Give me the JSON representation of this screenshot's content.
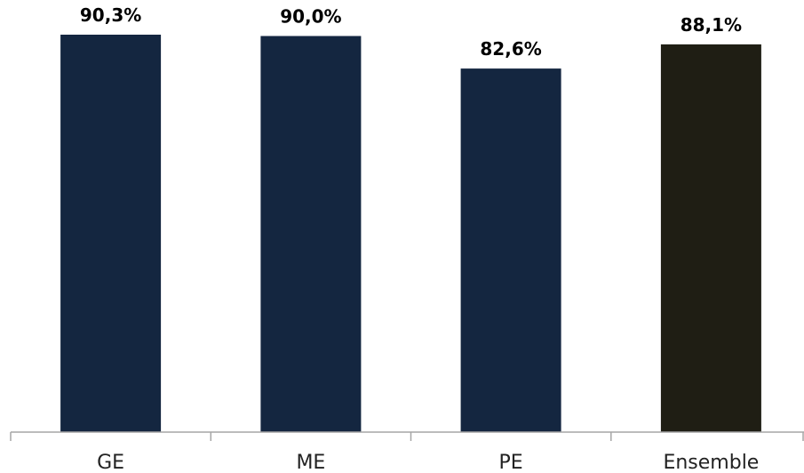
{
  "chart_data": {
    "type": "bar",
    "categories": [
      "GE",
      "ME",
      "PE",
      "Ensemble"
    ],
    "values": [
      90.3,
      90.0,
      82.6,
      88.1
    ],
    "data_labels": [
      "90,3%",
      "90,0%",
      "82,6%",
      "88,1%"
    ],
    "series_colors": [
      "#142640",
      "#142640",
      "#142640",
      "#1f1e14"
    ],
    "ylim": [
      0,
      100
    ],
    "grid": false,
    "legend": "none",
    "title": "",
    "xlabel": "",
    "ylabel": ""
  }
}
